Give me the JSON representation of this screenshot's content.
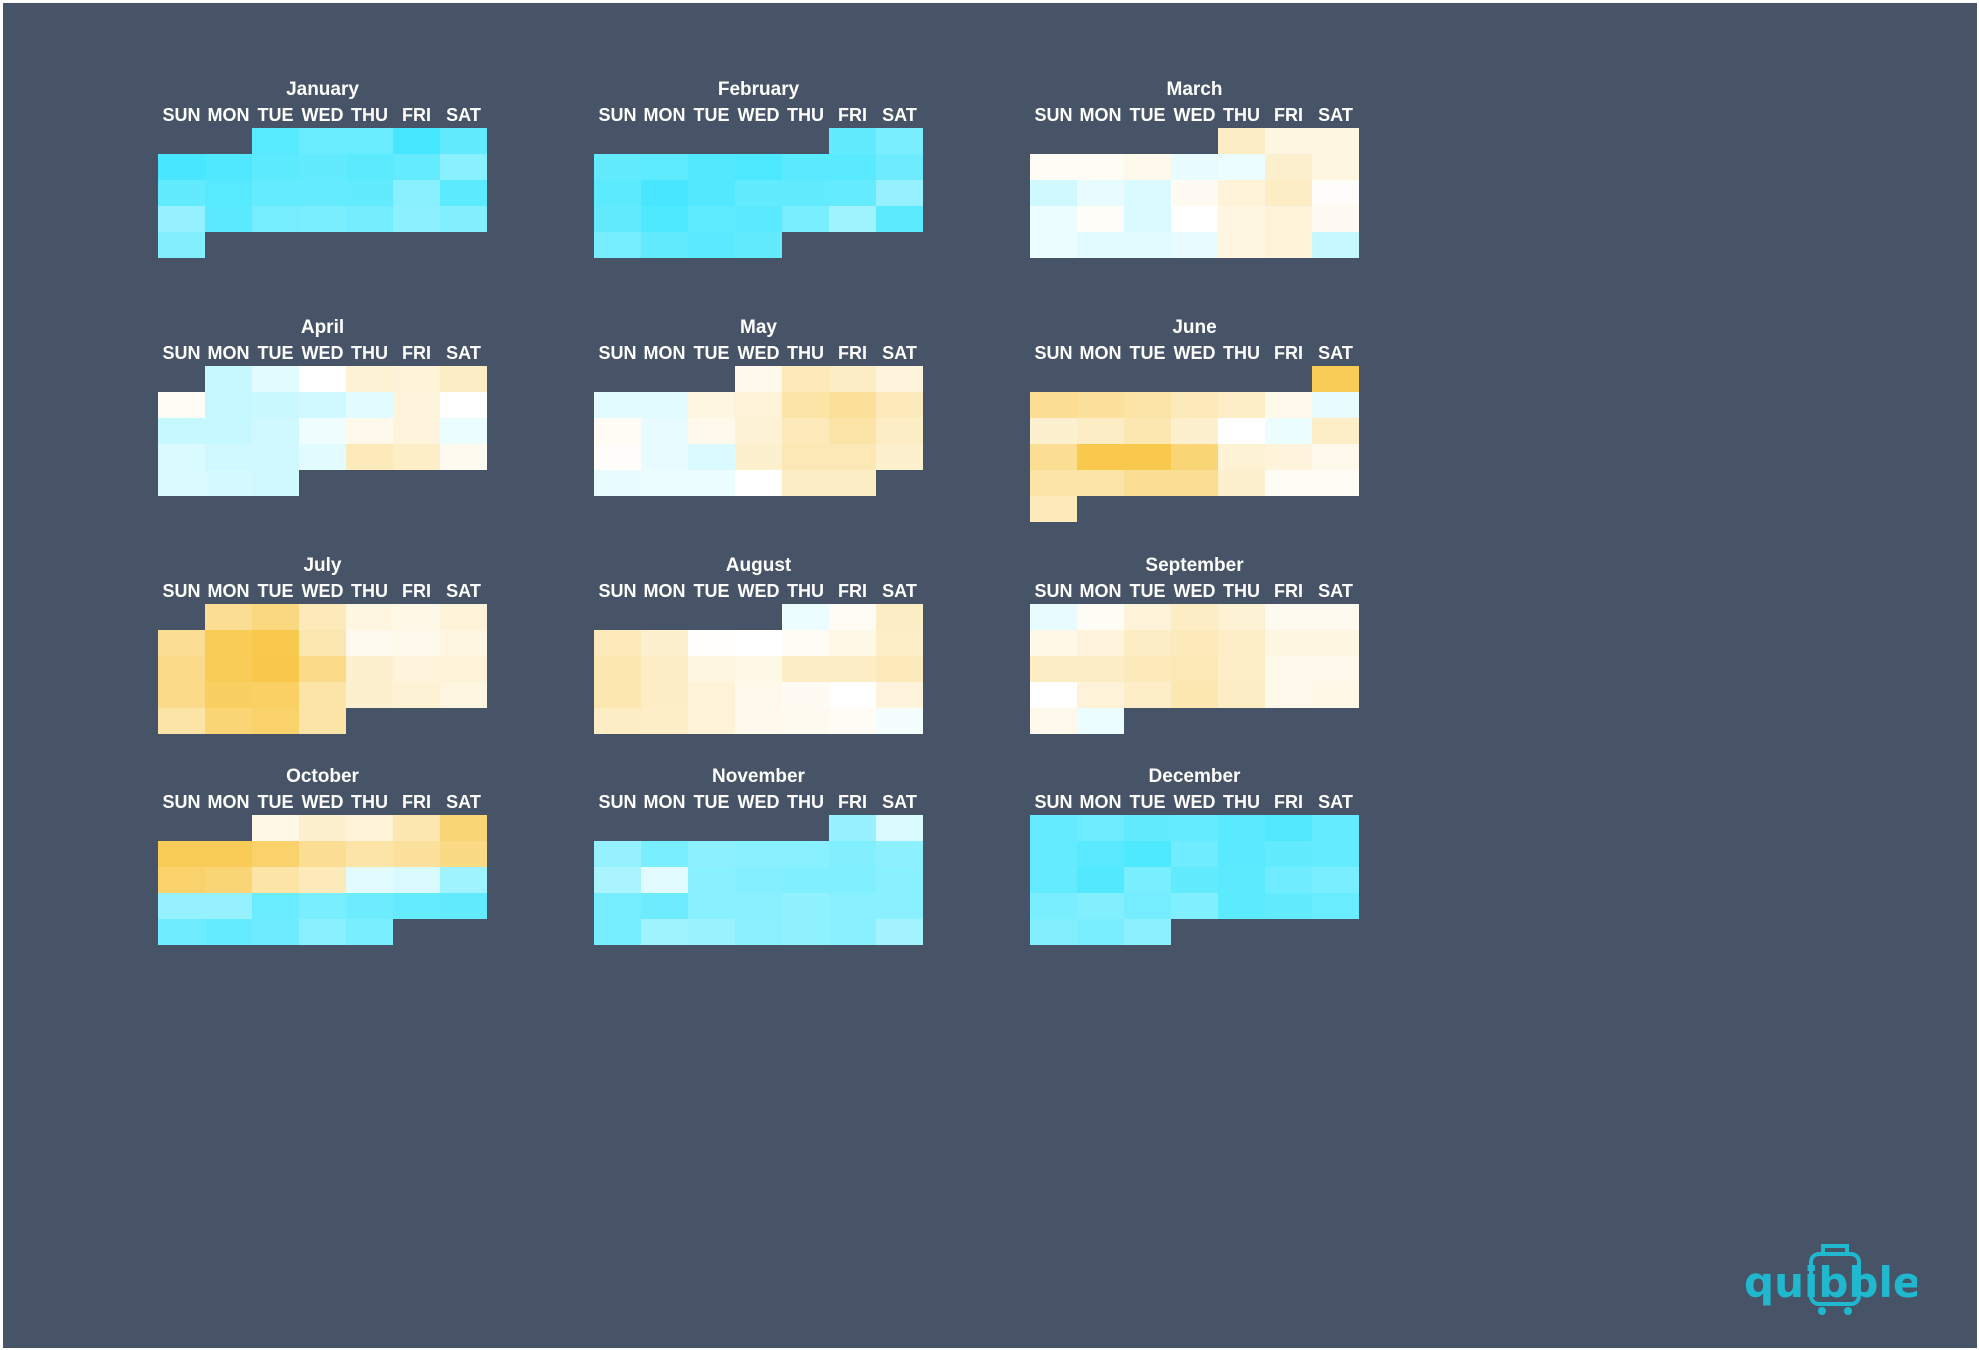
{
  "chart_data": {
    "type": "heatmap",
    "title": "",
    "weekday_labels": [
      "SUN",
      "MON",
      "TUE",
      "WED",
      "THU",
      "FRI",
      "SAT"
    ],
    "value_scale": "-1 = cold (cyan) to +1 = warm (yellow); daily values estimated from cell color",
    "colors": {
      "background": "#475467",
      "cold": "#3fe6ff",
      "neutral": "#ffffff",
      "warm": "#f8c33a",
      "text": "#ffffff"
    },
    "months": [
      {
        "name": "January",
        "first_weekday": 2,
        "days": [
          -0.88,
          -0.78,
          -0.78,
          -0.96,
          -0.82,
          -0.95,
          -0.91,
          -0.85,
          -0.82,
          -0.85,
          -0.8,
          -0.62,
          -0.82,
          -0.88,
          -0.8,
          -0.8,
          -0.82,
          -0.62,
          -0.85,
          -0.55,
          -0.86,
          -0.72,
          -0.7,
          -0.73,
          -0.6,
          -0.65,
          -0.65
        ]
      },
      {
        "name": "February",
        "first_weekday": 5,
        "days": [
          -0.82,
          -0.7,
          -0.82,
          -0.84,
          -0.9,
          -0.94,
          -0.86,
          -0.86,
          -0.76,
          -0.85,
          -0.95,
          -0.9,
          -0.82,
          -0.82,
          -0.8,
          -0.55,
          -0.82,
          -0.92,
          -0.84,
          -0.86,
          -0.7,
          -0.5,
          -0.85,
          -0.72,
          -0.82,
          -0.86,
          -0.82
        ]
      },
      {
        "name": "March",
        "first_weekday": 4,
        "days": [
          0.3,
          0.15,
          0.15,
          0.05,
          0.05,
          0.1,
          -0.12,
          -0.1,
          0.25,
          0.15,
          -0.25,
          -0.12,
          -0.2,
          0.06,
          0.2,
          0.3,
          0.03,
          -0.1,
          0.04,
          -0.2,
          0.0,
          0.15,
          0.2,
          0.06,
          -0.1,
          -0.15,
          -0.15,
          -0.12,
          0.15,
          0.2,
          -0.3
        ]
      },
      {
        "name": "April",
        "first_weekday": 1,
        "days": [
          -0.3,
          -0.15,
          0.0,
          0.22,
          0.2,
          0.3,
          0.05,
          -0.3,
          -0.28,
          -0.25,
          -0.15,
          0.18,
          0.0,
          -0.3,
          -0.3,
          -0.25,
          -0.08,
          0.1,
          0.18,
          -0.1,
          -0.2,
          -0.25,
          -0.25,
          -0.15,
          0.35,
          0.28,
          0.08,
          -0.2,
          -0.22,
          -0.25
        ]
      },
      {
        "name": "May",
        "first_weekday": 3,
        "days": [
          0.1,
          0.35,
          0.3,
          0.18,
          -0.15,
          -0.15,
          0.15,
          0.2,
          0.45,
          0.52,
          0.35,
          0.05,
          -0.12,
          0.1,
          0.22,
          0.35,
          0.45,
          0.3,
          0.03,
          -0.12,
          -0.2,
          0.25,
          0.38,
          0.38,
          0.25,
          -0.12,
          -0.1,
          -0.1,
          0.0,
          0.3,
          0.3
        ]
      },
      {
        "name": "June",
        "first_weekday": 6,
        "days": [
          0.85,
          0.55,
          0.5,
          0.45,
          0.35,
          0.28,
          0.1,
          -0.12,
          0.25,
          0.3,
          0.4,
          0.25,
          0.0,
          -0.1,
          0.28,
          0.55,
          0.9,
          0.9,
          0.7,
          0.22,
          0.18,
          0.1,
          0.45,
          0.45,
          0.55,
          0.55,
          0.25,
          0.05,
          0.05,
          0.35
        ]
      },
      {
        "name": "July",
        "first_weekday": 1,
        "days": [
          0.55,
          0.65,
          0.35,
          0.15,
          0.12,
          0.2,
          0.55,
          0.85,
          0.9,
          0.4,
          0.08,
          0.1,
          0.15,
          0.6,
          0.85,
          0.92,
          0.6,
          0.25,
          0.18,
          0.2,
          0.6,
          0.8,
          0.78,
          0.45,
          0.25,
          0.22,
          0.15,
          0.45,
          0.7,
          0.75,
          0.45
        ]
      },
      {
        "name": "August",
        "first_weekday": 4,
        "days": [
          -0.1,
          0.05,
          0.3,
          0.35,
          0.25,
          0.02,
          0.0,
          0.05,
          0.12,
          0.28,
          0.4,
          0.3,
          0.15,
          0.12,
          0.3,
          0.3,
          0.35,
          0.4,
          0.3,
          0.2,
          0.1,
          0.06,
          0.0,
          0.18,
          0.3,
          0.28,
          0.2,
          0.1,
          0.08,
          0.05,
          -0.05
        ]
      },
      {
        "name": "September",
        "first_weekday": 0,
        "days": [
          -0.12,
          0.05,
          0.2,
          0.3,
          0.22,
          0.08,
          0.08,
          0.12,
          0.18,
          0.3,
          0.35,
          0.28,
          0.15,
          0.15,
          0.3,
          0.3,
          0.35,
          0.38,
          0.28,
          0.1,
          0.1,
          0.0,
          0.2,
          0.28,
          0.4,
          0.3,
          0.1,
          0.12,
          0.1,
          -0.1
        ]
      },
      {
        "name": "October",
        "first_weekday": 2,
        "days": [
          0.12,
          0.25,
          0.2,
          0.4,
          0.7,
          0.85,
          0.85,
          0.75,
          0.55,
          0.45,
          0.5,
          0.62,
          0.75,
          0.7,
          0.45,
          0.35,
          -0.15,
          -0.2,
          -0.5,
          -0.55,
          -0.55,
          -0.78,
          -0.7,
          -0.76,
          -0.8,
          -0.82,
          -0.75,
          -0.8,
          -0.76,
          -0.62,
          -0.7
        ]
      },
      {
        "name": "November",
        "first_weekday": 5,
        "days": [
          -0.55,
          -0.2,
          -0.55,
          -0.7,
          -0.6,
          -0.62,
          -0.62,
          -0.65,
          -0.6,
          -0.45,
          -0.15,
          -0.62,
          -0.64,
          -0.66,
          -0.66,
          -0.62,
          -0.72,
          -0.76,
          -0.62,
          -0.62,
          -0.58,
          -0.62,
          -0.62,
          -0.72,
          -0.5,
          -0.52,
          -0.6,
          -0.58,
          -0.62,
          -0.48
        ]
      },
      {
        "name": "December",
        "first_weekday": 0,
        "days": [
          -0.8,
          -0.75,
          -0.82,
          -0.8,
          -0.86,
          -0.9,
          -0.8,
          -0.8,
          -0.86,
          -0.92,
          -0.75,
          -0.86,
          -0.82,
          -0.8,
          -0.8,
          -0.9,
          -0.7,
          -0.82,
          -0.85,
          -0.75,
          -0.7,
          -0.7,
          -0.65,
          -0.72,
          -0.66,
          -0.85,
          -0.82,
          -0.78,
          -0.65,
          -0.7,
          -0.6
        ]
      }
    ]
  },
  "logo": {
    "text": "quibble",
    "color": "#1fb8cf"
  }
}
